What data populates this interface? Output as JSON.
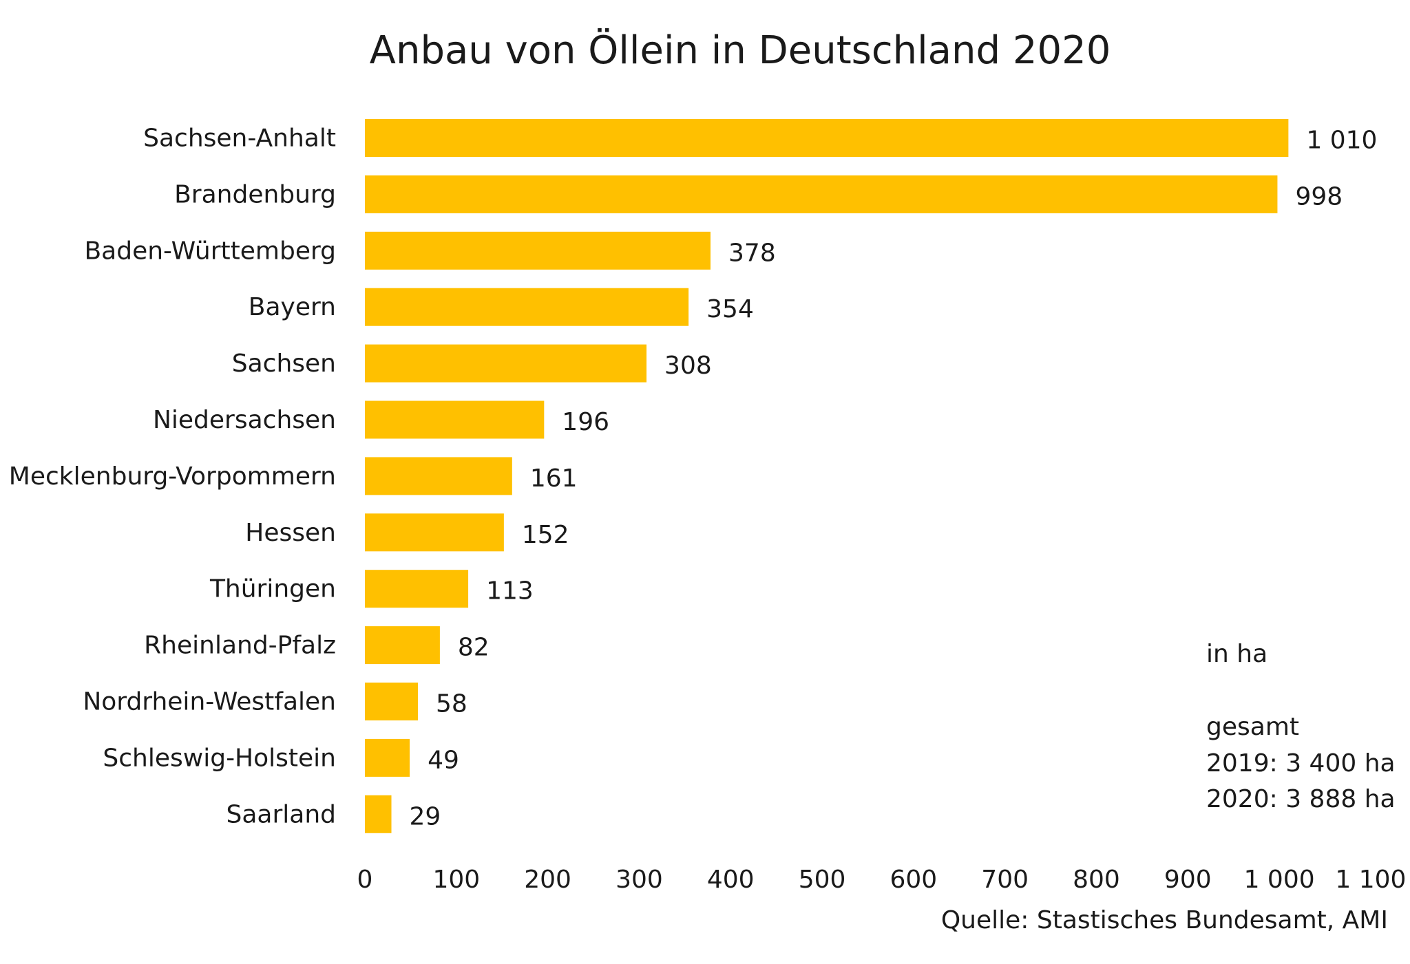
{
  "chart_data": {
    "type": "bar",
    "orientation": "horizontal",
    "title": "Anbau von Öllein in Deutschland 2020",
    "categories": [
      "Sachsen-Anhalt",
      "Brandenburg",
      "Baden-Württemberg",
      "Bayern",
      "Sachsen",
      "Niedersachsen",
      "Mecklenburg-Vorpommern",
      "Hessen",
      "Thüringen",
      "Rheinland-Pfalz",
      "Nordrhein-Westfalen",
      "Schleswig-Holstein",
      "Saarland"
    ],
    "values": [
      1010,
      998,
      378,
      354,
      308,
      196,
      161,
      152,
      113,
      82,
      58,
      49,
      29
    ],
    "value_labels": [
      "1 010",
      "998",
      "378",
      "354",
      "308",
      "196",
      "161",
      "152",
      "113",
      "82",
      "58",
      "49",
      "29"
    ],
    "xlim": [
      0,
      1100
    ],
    "x_ticks": [
      0,
      100,
      200,
      300,
      400,
      500,
      600,
      700,
      800,
      900,
      1000,
      1100
    ],
    "x_tick_labels": [
      "0",
      "100",
      "200",
      "300",
      "400",
      "500",
      "600",
      "700",
      "800",
      "900",
      "1 000",
      "1 100"
    ],
    "xlabel": "",
    "ylabel": "",
    "grid": false,
    "bar_color": "#FFC000",
    "annotations": {
      "unit": "in ha",
      "total_heading": "gesamt",
      "total_2019": "2019: 3 400 ha",
      "total_2020": "2020: 3 888 ha"
    },
    "source": "Quelle: Stastisches Bundesamt, AMI"
  }
}
